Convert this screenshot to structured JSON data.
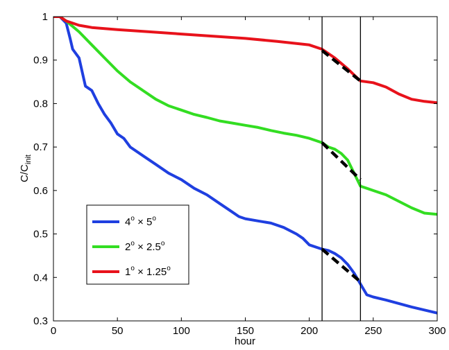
{
  "chart_data": {
    "type": "line",
    "title": "",
    "xlabel": "hour",
    "ylabel": {
      "main": "C/C",
      "subscript": "init"
    },
    "xlim": [
      0,
      300
    ],
    "ylim": [
      0.3,
      1.0
    ],
    "xticks": [
      0,
      50,
      100,
      150,
      200,
      250,
      300
    ],
    "yticks": [
      0.3,
      0.4,
      0.5,
      0.6,
      0.7,
      0.8,
      0.9,
      1.0
    ],
    "xtick_labels": [
      "0",
      "50",
      "100",
      "150",
      "200",
      "250",
      "300"
    ],
    "ytick_labels": [
      "0.3",
      "0.4",
      "0.5",
      "0.6",
      "0.7",
      "0.8",
      "0.9",
      "1"
    ],
    "grid": false,
    "legend_position": "lower-left",
    "series": [
      {
        "name": "4° × 5°",
        "name_parts": [
          "4",
          "o",
          " × 5",
          "o"
        ],
        "color": "#1f3fe0",
        "points": [
          [
            0,
            1.0
          ],
          [
            5,
            1.0
          ],
          [
            10,
            0.985
          ],
          [
            13,
            0.95
          ],
          [
            15,
            0.925
          ],
          [
            20,
            0.905
          ],
          [
            25,
            0.84
          ],
          [
            30,
            0.83
          ],
          [
            35,
            0.8
          ],
          [
            40,
            0.775
          ],
          [
            45,
            0.755
          ],
          [
            50,
            0.73
          ],
          [
            55,
            0.72
          ],
          [
            60,
            0.7
          ],
          [
            70,
            0.68
          ],
          [
            80,
            0.66
          ],
          [
            90,
            0.64
          ],
          [
            100,
            0.625
          ],
          [
            110,
            0.605
          ],
          [
            120,
            0.59
          ],
          [
            130,
            0.57
          ],
          [
            140,
            0.55
          ],
          [
            145,
            0.54
          ],
          [
            150,
            0.535
          ],
          [
            160,
            0.53
          ],
          [
            170,
            0.525
          ],
          [
            180,
            0.515
          ],
          [
            190,
            0.5
          ],
          [
            195,
            0.49
          ],
          [
            200,
            0.475
          ],
          [
            210,
            0.465
          ],
          [
            215,
            0.462
          ],
          [
            220,
            0.455
          ],
          [
            225,
            0.445
          ],
          [
            230,
            0.43
          ],
          [
            235,
            0.41
          ],
          [
            240,
            0.385
          ],
          [
            245,
            0.36
          ],
          [
            250,
            0.355
          ],
          [
            260,
            0.348
          ],
          [
            270,
            0.34
          ],
          [
            280,
            0.332
          ],
          [
            290,
            0.325
          ],
          [
            300,
            0.318
          ]
        ]
      },
      {
        "name": "2° × 2.5°",
        "name_parts": [
          "2",
          "o",
          " × 2.5",
          "o"
        ],
        "color": "#33dd22",
        "points": [
          [
            0,
            1.0
          ],
          [
            5,
            1.0
          ],
          [
            10,
            0.99
          ],
          [
            20,
            0.965
          ],
          [
            30,
            0.935
          ],
          [
            40,
            0.905
          ],
          [
            50,
            0.875
          ],
          [
            60,
            0.85
          ],
          [
            70,
            0.83
          ],
          [
            80,
            0.81
          ],
          [
            90,
            0.795
          ],
          [
            100,
            0.785
          ],
          [
            110,
            0.775
          ],
          [
            120,
            0.768
          ],
          [
            130,
            0.76
          ],
          [
            140,
            0.755
          ],
          [
            150,
            0.75
          ],
          [
            160,
            0.745
          ],
          [
            170,
            0.738
          ],
          [
            180,
            0.732
          ],
          [
            190,
            0.727
          ],
          [
            200,
            0.72
          ],
          [
            210,
            0.71
          ],
          [
            215,
            0.7
          ],
          [
            220,
            0.695
          ],
          [
            225,
            0.685
          ],
          [
            230,
            0.67
          ],
          [
            235,
            0.64
          ],
          [
            240,
            0.61
          ],
          [
            245,
            0.605
          ],
          [
            250,
            0.6
          ],
          [
            260,
            0.59
          ],
          [
            270,
            0.575
          ],
          [
            280,
            0.56
          ],
          [
            290,
            0.548
          ],
          [
            300,
            0.545
          ]
        ]
      },
      {
        "name": "1° × 1.25°",
        "name_parts": [
          "1",
          "o",
          " × 1.25",
          "o"
        ],
        "color": "#e8121b",
        "points": [
          [
            0,
            1.0
          ],
          [
            5,
            1.0
          ],
          [
            10,
            0.99
          ],
          [
            20,
            0.98
          ],
          [
            30,
            0.975
          ],
          [
            50,
            0.97
          ],
          [
            75,
            0.965
          ],
          [
            100,
            0.96
          ],
          [
            125,
            0.955
          ],
          [
            150,
            0.95
          ],
          [
            175,
            0.943
          ],
          [
            200,
            0.935
          ],
          [
            210,
            0.925
          ],
          [
            220,
            0.905
          ],
          [
            230,
            0.88
          ],
          [
            240,
            0.852
          ],
          [
            250,
            0.848
          ],
          [
            260,
            0.838
          ],
          [
            270,
            0.822
          ],
          [
            280,
            0.81
          ],
          [
            290,
            0.805
          ],
          [
            300,
            0.802
          ]
        ]
      }
    ],
    "reference_lines": [
      {
        "axis": "x",
        "value": 210,
        "color": "#000000"
      },
      {
        "axis": "x",
        "value": 240,
        "color": "#000000"
      }
    ],
    "dashed_segments": [
      {
        "from": [
          210,
          0.922
        ],
        "to": [
          240,
          0.852
        ],
        "color": "#000000"
      },
      {
        "from": [
          210,
          0.71
        ],
        "to": [
          240,
          0.625
        ],
        "color": "#000000"
      },
      {
        "from": [
          210,
          0.465
        ],
        "to": [
          240,
          0.39
        ],
        "color": "#000000"
      }
    ]
  }
}
